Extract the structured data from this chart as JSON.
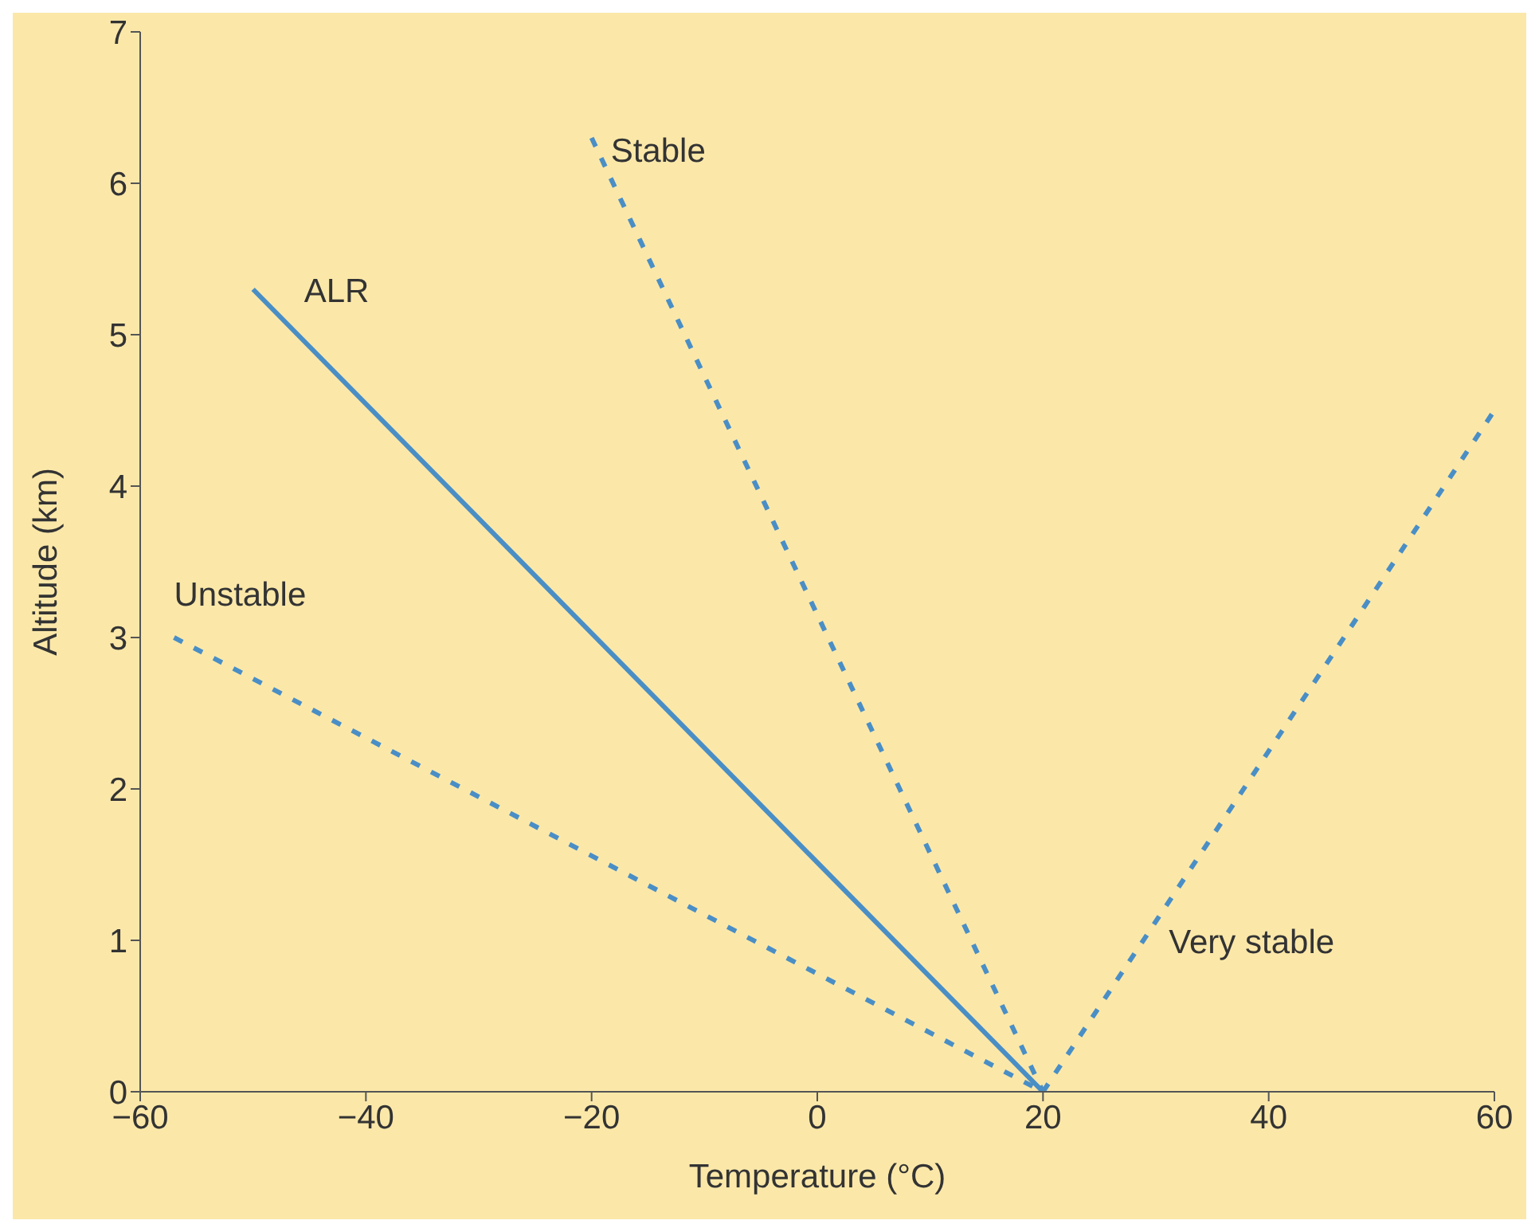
{
  "chart_data": {
    "type": "line",
    "xlabel": "Temperature (°C)",
    "ylabel": "Altitude (km)",
    "xlim": [
      -60,
      60
    ],
    "xticks": [
      -60,
      -40,
      -20,
      0,
      20,
      40,
      60
    ],
    "ylim": [
      0,
      7
    ],
    "yticks": [
      0,
      1,
      2,
      3,
      4,
      5,
      6,
      7
    ],
    "grid": false,
    "legend": false,
    "marker": "none",
    "series": [
      {
        "name": "ALR",
        "color": "#4a8ec6",
        "line_style": "solid",
        "x": [
          -50,
          20
        ],
        "values": [
          5.3,
          0
        ]
      },
      {
        "name": "Stable",
        "color": "#4a8ec6",
        "line_style": "dashed",
        "x": [
          -20,
          20
        ],
        "values": [
          6.3,
          0
        ]
      },
      {
        "name": "Unstable",
        "color": "#4a8ec6",
        "line_style": "dashed",
        "x": [
          -57,
          20
        ],
        "values": [
          3,
          0
        ]
      },
      {
        "name": "Very stable",
        "color": "#4a8ec6",
        "line_style": "dashed",
        "x": [
          20,
          60
        ],
        "values": [
          0,
          4.5
        ]
      }
    ]
  }
}
